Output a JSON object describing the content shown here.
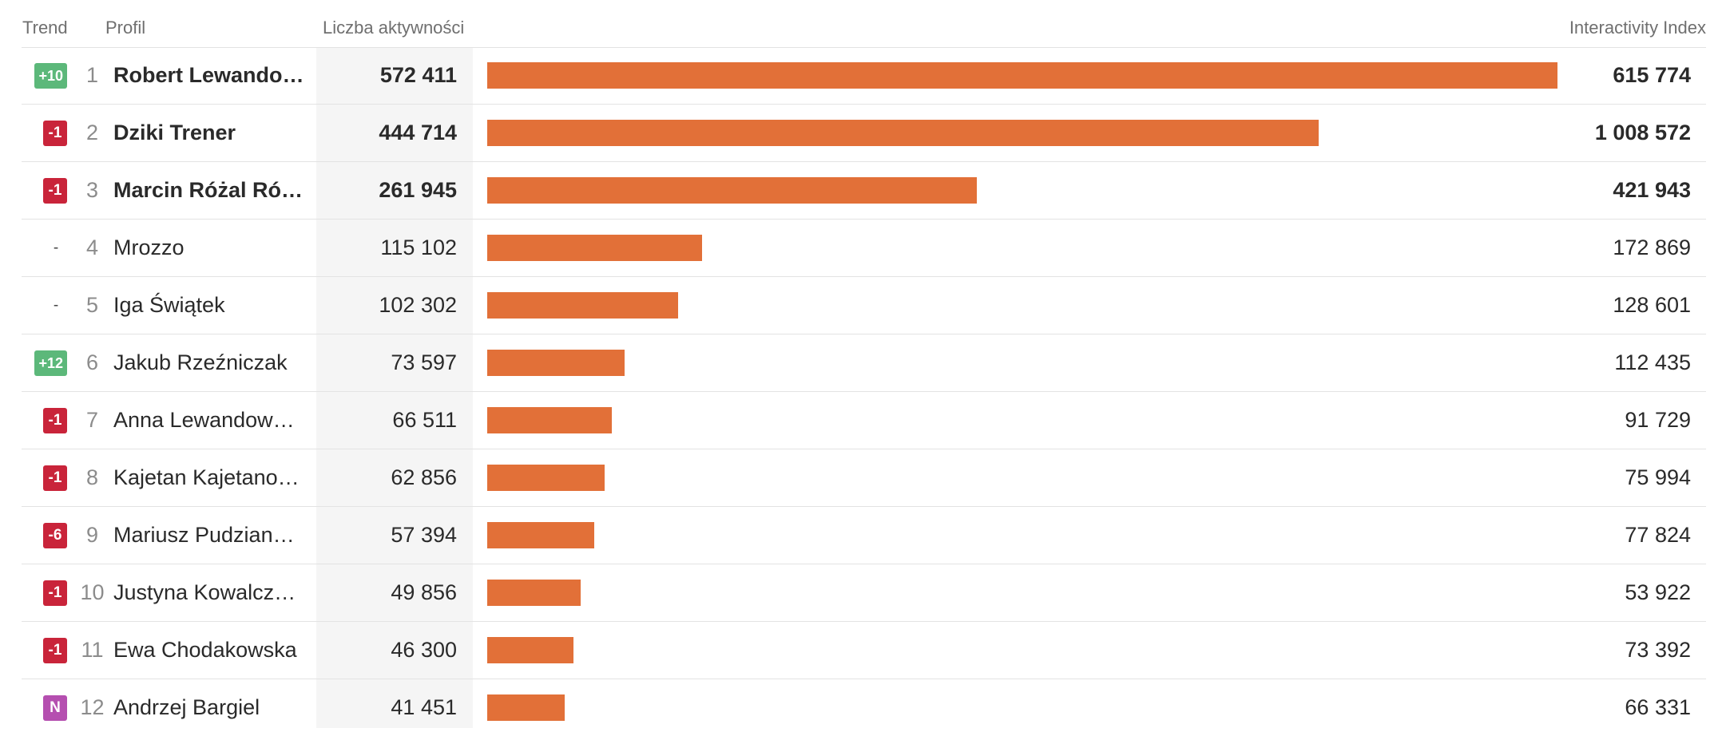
{
  "headers": {
    "trend": "Trend",
    "profil": "Profil",
    "count": "Liczba aktywności",
    "index": "Interactivity Index"
  },
  "colors": {
    "bar": "#e27038",
    "trend_up": "#5cb87a",
    "trend_down": "#c9243a",
    "trend_new": "#b54fb0"
  },
  "rows": [
    {
      "trend": "+10",
      "trend_type": "up",
      "rank": "1",
      "name": "Robert Lewandow…",
      "count": "572 411",
      "value": 572411,
      "index": "615 774",
      "bold": true
    },
    {
      "trend": "-1",
      "trend_type": "down",
      "rank": "2",
      "name": "Dziki Trener",
      "count": "444 714",
      "value": 444714,
      "index": "1 008 572",
      "bold": true
    },
    {
      "trend": "-1",
      "trend_type": "down",
      "rank": "3",
      "name": "Marcin Różal Róża…",
      "count": "261 945",
      "value": 261945,
      "index": "421 943",
      "bold": true
    },
    {
      "trend": "-",
      "trend_type": "same",
      "rank": "4",
      "name": "Mrozzo",
      "count": "115 102",
      "value": 115102,
      "index": "172 869",
      "bold": false
    },
    {
      "trend": "-",
      "trend_type": "same",
      "rank": "5",
      "name": "Iga Świątek",
      "count": "102 302",
      "value": 102302,
      "index": "128 601",
      "bold": false
    },
    {
      "trend": "+12",
      "trend_type": "up",
      "rank": "6",
      "name": "Jakub Rzeźniczak",
      "count": "73 597",
      "value": 73597,
      "index": "112 435",
      "bold": false
    },
    {
      "trend": "-1",
      "trend_type": "down",
      "rank": "7",
      "name": "Anna Lewandowska",
      "count": "66 511",
      "value": 66511,
      "index": "91 729",
      "bold": false
    },
    {
      "trend": "-1",
      "trend_type": "down",
      "rank": "8",
      "name": "Kajetan Kajetanow…",
      "count": "62 856",
      "value": 62856,
      "index": "75 994",
      "bold": false
    },
    {
      "trend": "-6",
      "trend_type": "down",
      "rank": "9",
      "name": "Mariusz Pudziano…",
      "count": "57 394",
      "value": 57394,
      "index": "77 824",
      "bold": false
    },
    {
      "trend": "-1",
      "trend_type": "down",
      "rank": "10",
      "name": "Justyna Kowalczyk…",
      "count": "49 856",
      "value": 49856,
      "index": "53 922",
      "bold": false
    },
    {
      "trend": "-1",
      "trend_type": "down",
      "rank": "11",
      "name": "Ewa Chodakowska",
      "count": "46 300",
      "value": 46300,
      "index": "73 392",
      "bold": false
    },
    {
      "trend": "N",
      "trend_type": "new",
      "rank": "12",
      "name": "Andrzej Bargiel",
      "count": "41 451",
      "value": 41451,
      "index": "66 331",
      "bold": false
    }
  ]
}
